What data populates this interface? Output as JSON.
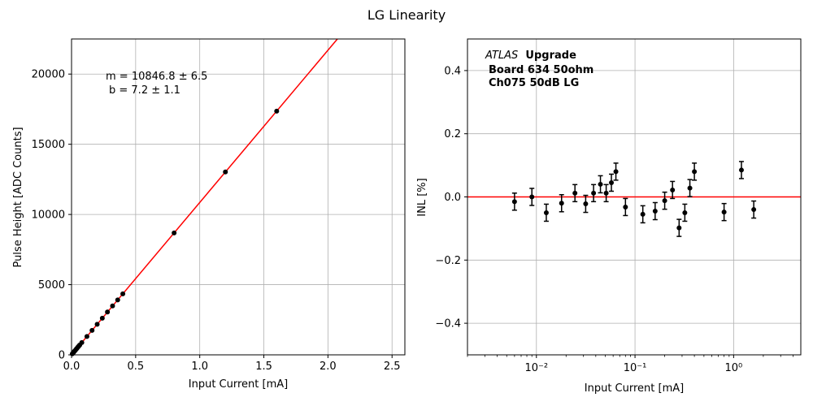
{
  "figure": {
    "title": "LG Linearity"
  },
  "colors": {
    "fit": "#ff0000",
    "marker": "#000000",
    "grid": "#b0b0b0",
    "axis": "#000000"
  },
  "chart_data": [
    {
      "type": "scatter",
      "name": "pulse-height",
      "xlabel": "Input Current [mA]",
      "ylabel": "Pulse Height [ADC Counts]",
      "xlim": [
        0,
        2.6
      ],
      "ylim": [
        0,
        22500
      ],
      "xticks": [
        0,
        0.5,
        1.0,
        1.5,
        2.0,
        2.5
      ],
      "xtick_labels": [
        "0.0",
        "0.5",
        "1.0",
        "1.5",
        "2.0",
        "2.5"
      ],
      "yticks": [
        0,
        5000,
        10000,
        15000,
        20000
      ],
      "ytick_labels": [
        "0",
        "5000",
        "10000",
        "15000",
        "20000"
      ],
      "grid": true,
      "annotation_lines": [
        "m = 10846.8 ± 6.5",
        "b = 7.2 ± 1.1"
      ],
      "fit": {
        "slope": 10846.8,
        "intercept": 7.2
      },
      "x": [
        0.006,
        0.009,
        0.0126,
        0.018,
        0.0246,
        0.0316,
        0.038,
        0.0446,
        0.051,
        0.0576,
        0.064,
        0.08,
        0.12,
        0.16,
        0.2,
        0.24,
        0.28,
        0.32,
        0.36,
        0.4,
        0.8,
        1.2,
        1.6
      ],
      "y": [
        72,
        105,
        144,
        203,
        275,
        350,
        419,
        491,
        561,
        634,
        704,
        875,
        1309,
        1742,
        2177,
        2611,
        3048,
        3482,
        3912,
        4346,
        8684,
        13030,
        17360
      ]
    },
    {
      "type": "scatter",
      "name": "inl",
      "xlabel": "Input Current [mA]",
      "ylabel": "INL [%]",
      "xscale": "log",
      "xlim": [
        0.002,
        4.8
      ],
      "ylim": [
        -0.5,
        0.5
      ],
      "xticks": [
        0.01,
        0.1,
        1
      ],
      "xtick_labels": [
        "10⁻²",
        "10⁻¹",
        "10⁰"
      ],
      "yticks": [
        -0.4,
        -0.2,
        0.0,
        0.2,
        0.4
      ],
      "ytick_labels": [
        "−0.4",
        "−0.2",
        "0.0",
        "0.2",
        "0.4"
      ],
      "grid": true,
      "reference_line": 0.0,
      "label_lines": [
        "ATLAS",
        "Upgrade",
        "Board 634 50ohm",
        "Ch075 50dB LG"
      ],
      "x": [
        0.006,
        0.009,
        0.0126,
        0.018,
        0.0246,
        0.0316,
        0.038,
        0.0446,
        0.051,
        0.0576,
        0.064,
        0.08,
        0.12,
        0.16,
        0.2,
        0.24,
        0.28,
        0.32,
        0.36,
        0.4,
        0.8,
        1.2,
        1.6
      ],
      "y": [
        -0.015,
        0.0,
        -0.05,
        -0.02,
        0.012,
        -0.022,
        0.012,
        0.04,
        0.012,
        0.045,
        0.08,
        -0.032,
        -0.055,
        -0.045,
        -0.012,
        0.022,
        -0.098,
        -0.05,
        0.028,
        0.08,
        -0.048,
        0.085,
        -0.04
      ],
      "yerr": 0.027
    }
  ]
}
